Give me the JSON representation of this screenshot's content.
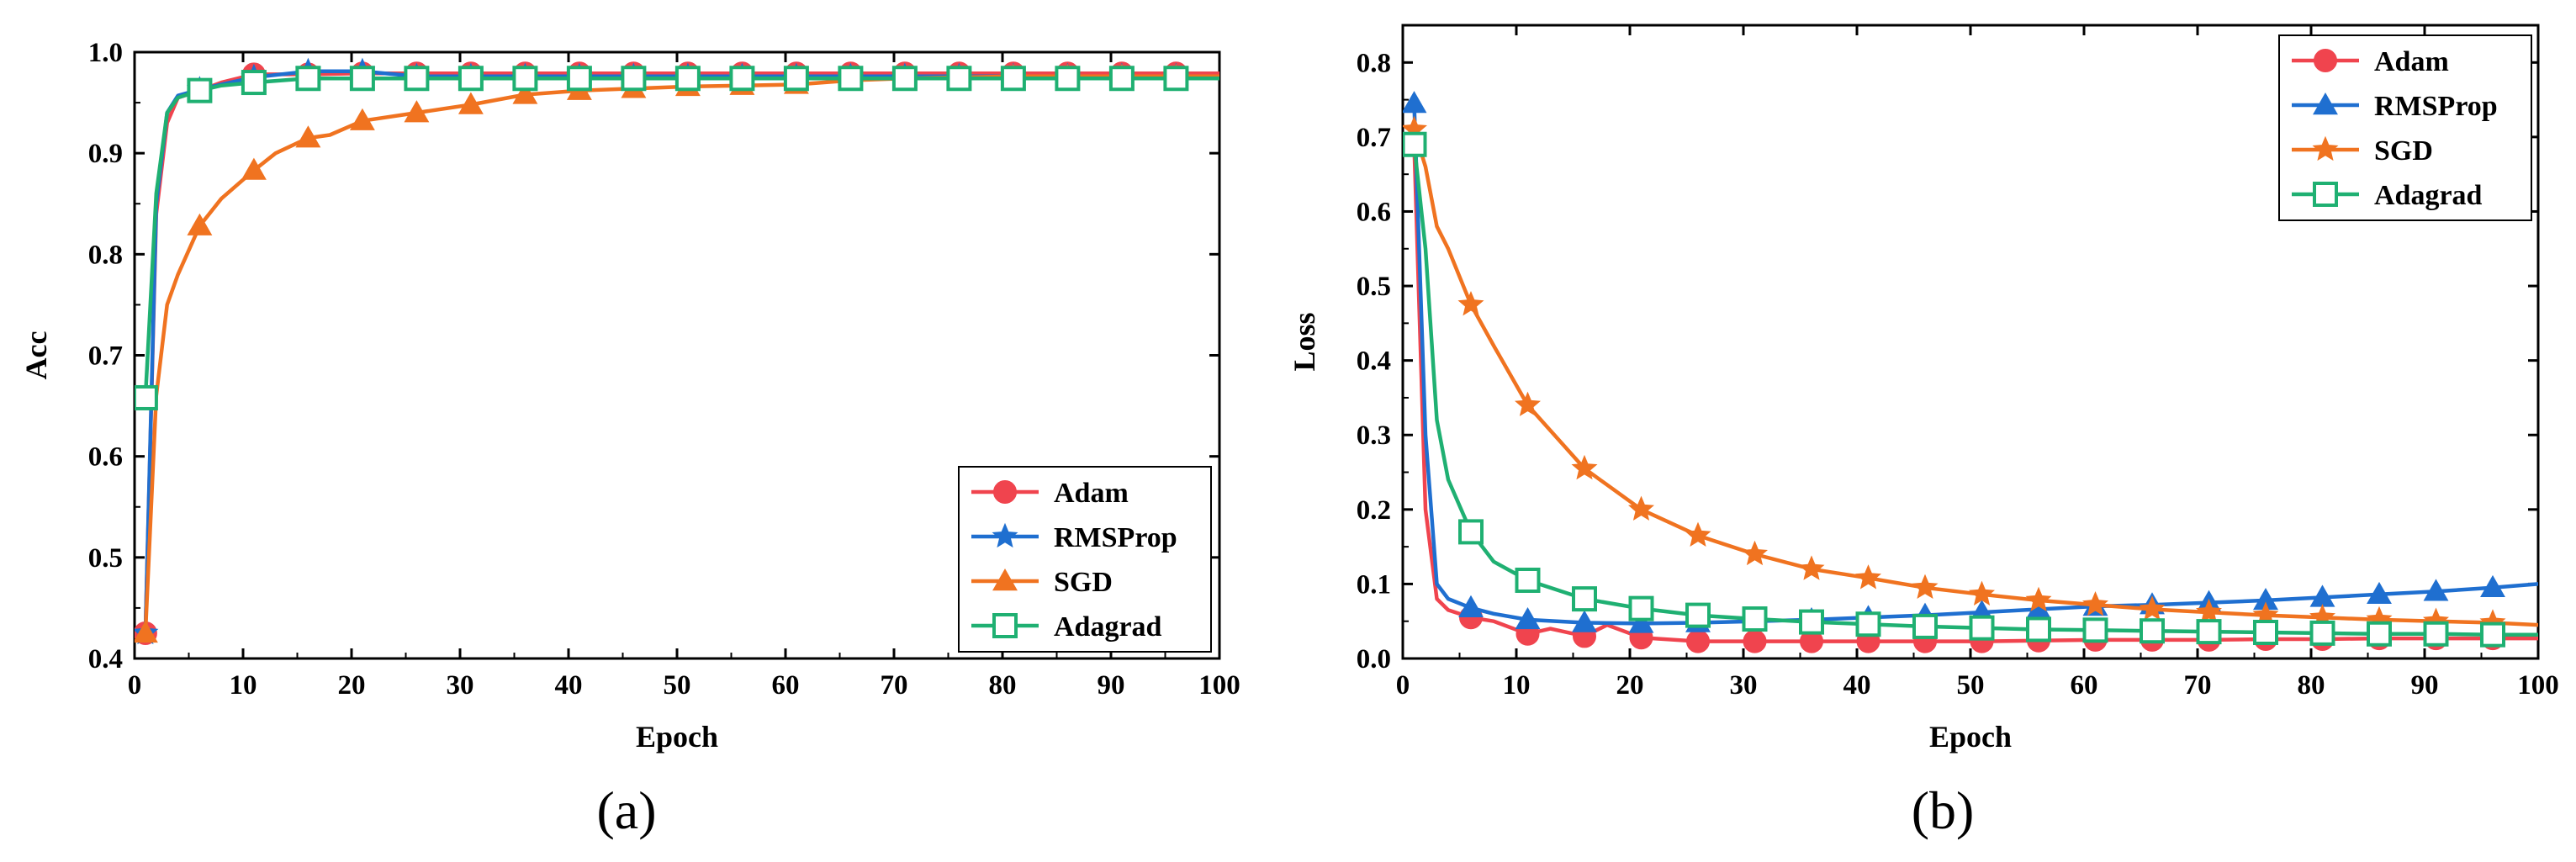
{
  "chart_data": [
    {
      "type": "line",
      "caption": "(a)",
      "xlabel": "Epoch",
      "ylabel": "Acc",
      "xlim": [
        0,
        100
      ],
      "ylim": [
        0.4,
        1.0
      ],
      "xticks": [
        "0",
        "10",
        "20",
        "30",
        "40",
        "50",
        "60",
        "70",
        "80",
        "90",
        "100"
      ],
      "yticks": [
        "0.4",
        "0.5",
        "0.6",
        "0.7",
        "0.8",
        "0.9",
        "1.0"
      ],
      "legend_position": "bottom-right",
      "series": [
        {
          "name": "Adam",
          "color": "#f0444e",
          "marker": "circle",
          "x": [
            1,
            2,
            3,
            4,
            6,
            8,
            11,
            16,
            21,
            26,
            31,
            36,
            41,
            46,
            51,
            56,
            61,
            66,
            71,
            76,
            81,
            86,
            91,
            96,
            100
          ],
          "y": [
            0.425,
            0.84,
            0.93,
            0.955,
            0.962,
            0.97,
            0.978,
            0.978,
            0.979,
            0.979,
            0.979,
            0.979,
            0.979,
            0.979,
            0.979,
            0.979,
            0.979,
            0.979,
            0.979,
            0.979,
            0.979,
            0.979,
            0.979,
            0.979,
            0.979
          ]
        },
        {
          "name": "RMSProp",
          "color": "#1f6fd0",
          "marker": "star",
          "x": [
            1,
            2,
            3,
            4,
            6,
            8,
            11,
            16,
            21,
            26,
            31,
            36,
            41,
            46,
            51,
            56,
            61,
            66,
            71,
            76,
            81,
            86,
            91,
            96,
            100
          ],
          "y": [
            0.425,
            0.85,
            0.94,
            0.957,
            0.963,
            0.968,
            0.975,
            0.981,
            0.981,
            0.976,
            0.976,
            0.976,
            0.976,
            0.976,
            0.976,
            0.976,
            0.976,
            0.976,
            0.976,
            0.976,
            0.976,
            0.976,
            0.976,
            0.976,
            0.976
          ]
        },
        {
          "name": "SGD",
          "color": "#f07320",
          "marker": "triangle",
          "x": [
            1,
            2,
            3,
            4,
            6,
            8,
            11,
            13,
            16,
            18,
            21,
            26,
            31,
            36,
            41,
            46,
            51,
            56,
            61,
            66,
            71,
            76,
            81,
            86,
            91,
            96,
            100
          ],
          "y": [
            0.425,
            0.66,
            0.75,
            0.78,
            0.828,
            0.855,
            0.883,
            0.9,
            0.915,
            0.918,
            0.932,
            0.94,
            0.948,
            0.958,
            0.962,
            0.964,
            0.966,
            0.967,
            0.968,
            0.972,
            0.974,
            0.975,
            0.976,
            0.976,
            0.976,
            0.976,
            0.976
          ]
        },
        {
          "name": "Adagrad",
          "color": "#1fb072",
          "marker": "square",
          "x": [
            1,
            2,
            3,
            4,
            6,
            8,
            11,
            16,
            21,
            26,
            31,
            36,
            41,
            46,
            51,
            56,
            61,
            66,
            71,
            76,
            81,
            86,
            91,
            96,
            100
          ],
          "y": [
            0.658,
            0.86,
            0.94,
            0.955,
            0.962,
            0.967,
            0.97,
            0.974,
            0.974,
            0.974,
            0.974,
            0.974,
            0.974,
            0.974,
            0.974,
            0.974,
            0.974,
            0.974,
            0.974,
            0.974,
            0.974,
            0.974,
            0.974,
            0.974,
            0.974
          ]
        }
      ]
    },
    {
      "type": "line",
      "caption": "(b)",
      "xlabel": "Epoch",
      "ylabel": "Loss",
      "xlim": [
        0,
        100
      ],
      "ylim": [
        0.0,
        0.85
      ],
      "xticks": [
        "0",
        "10",
        "20",
        "30",
        "40",
        "50",
        "60",
        "70",
        "80",
        "90",
        "100"
      ],
      "yticks": [
        "0.0",
        "0.1",
        "0.2",
        "0.3",
        "0.4",
        "0.5",
        "0.6",
        "0.7",
        "0.8"
      ],
      "legend_position": "top-right",
      "series": [
        {
          "name": "Adam",
          "color": "#f0444e",
          "marker": "circle",
          "x": [
            1,
            2,
            3,
            4,
            6,
            8,
            11,
            13,
            16,
            18,
            21,
            26,
            31,
            36,
            41,
            46,
            51,
            56,
            61,
            66,
            71,
            76,
            81,
            86,
            91,
            96,
            100
          ],
          "y": [
            0.69,
            0.2,
            0.08,
            0.065,
            0.055,
            0.05,
            0.033,
            0.04,
            0.03,
            0.045,
            0.028,
            0.023,
            0.023,
            0.023,
            0.023,
            0.023,
            0.023,
            0.024,
            0.025,
            0.025,
            0.025,
            0.026,
            0.026,
            0.027,
            0.027,
            0.027,
            0.027
          ]
        },
        {
          "name": "RMSProp",
          "color": "#1f6fd0",
          "marker": "triangle",
          "x": [
            1,
            2,
            3,
            4,
            6,
            8,
            11,
            16,
            21,
            26,
            31,
            36,
            41,
            46,
            51,
            56,
            61,
            66,
            71,
            76,
            81,
            86,
            91,
            96,
            100
          ],
          "y": [
            0.745,
            0.3,
            0.1,
            0.08,
            0.068,
            0.06,
            0.052,
            0.048,
            0.047,
            0.048,
            0.05,
            0.052,
            0.055,
            0.058,
            0.062,
            0.066,
            0.07,
            0.072,
            0.075,
            0.078,
            0.082,
            0.086,
            0.09,
            0.095,
            0.1
          ]
        },
        {
          "name": "SGD",
          "color": "#f07320",
          "marker": "star",
          "x": [
            1,
            2,
            3,
            4,
            6,
            8,
            11,
            16,
            21,
            26,
            31,
            36,
            41,
            46,
            51,
            56,
            61,
            66,
            71,
            76,
            81,
            86,
            91,
            96,
            100
          ],
          "y": [
            0.71,
            0.66,
            0.58,
            0.55,
            0.475,
            0.42,
            0.34,
            0.255,
            0.2,
            0.165,
            0.14,
            0.12,
            0.108,
            0.095,
            0.086,
            0.078,
            0.072,
            0.066,
            0.062,
            0.058,
            0.055,
            0.052,
            0.05,
            0.048,
            0.045
          ]
        },
        {
          "name": "Adagrad",
          "color": "#1fb072",
          "marker": "square",
          "x": [
            1,
            2,
            3,
            4,
            6,
            8,
            11,
            16,
            21,
            26,
            31,
            36,
            41,
            46,
            51,
            56,
            61,
            66,
            71,
            76,
            81,
            86,
            91,
            96,
            100
          ],
          "y": [
            0.69,
            0.55,
            0.32,
            0.24,
            0.17,
            0.13,
            0.105,
            0.08,
            0.067,
            0.058,
            0.053,
            0.049,
            0.046,
            0.043,
            0.041,
            0.039,
            0.038,
            0.037,
            0.036,
            0.035,
            0.034,
            0.033,
            0.033,
            0.032,
            0.032
          ]
        }
      ]
    }
  ]
}
